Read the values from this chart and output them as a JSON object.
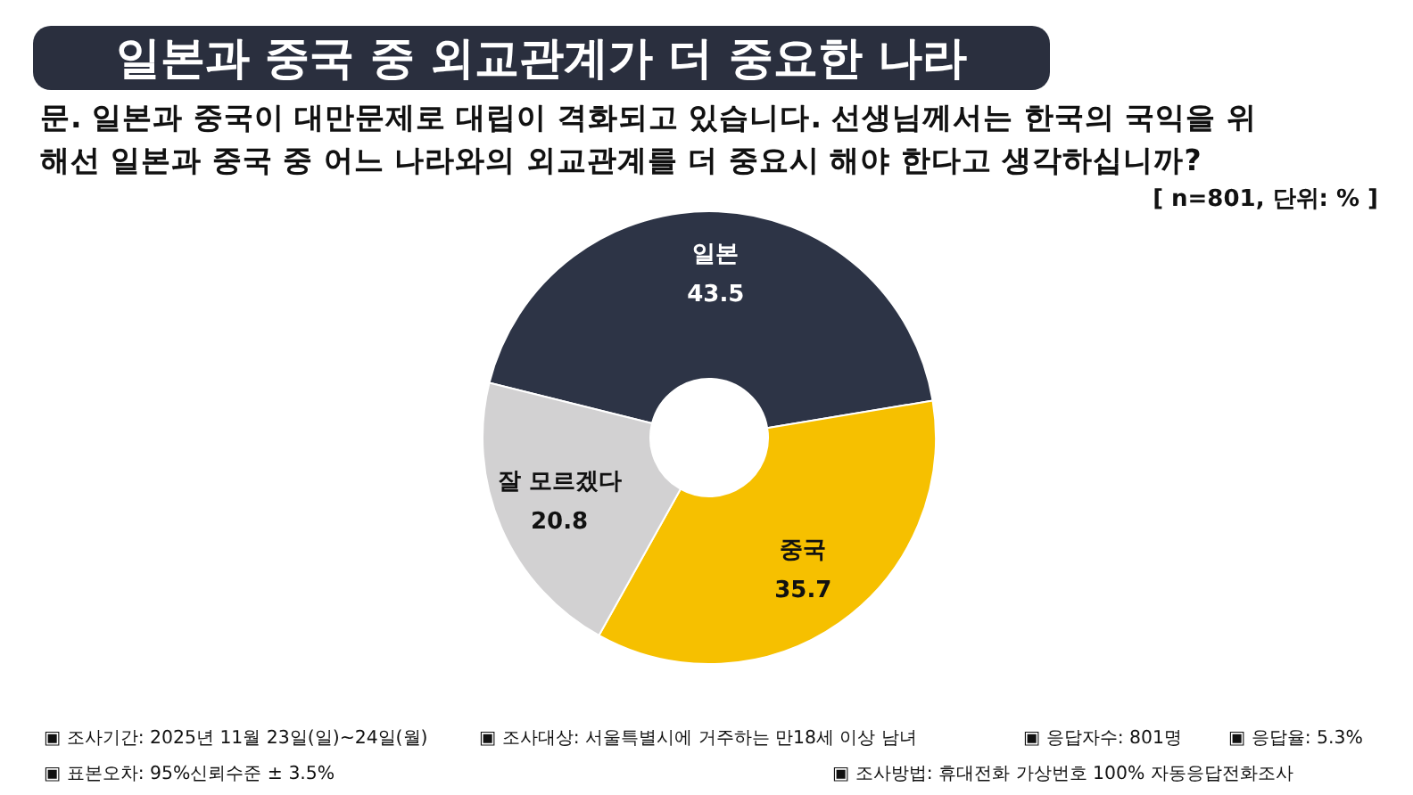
{
  "chart_data": {
    "type": "donut",
    "title": "일본과 중국 중 외교관계가 더 중요한 나라",
    "subtitle": "문. 일본과 중국이 대만문제로 대립이 격화되고 있습니다. 선생님께서는 한국의 국익을 위\n해선 일본과 중국 중 어느 나라와의 외교관계를 더 중요시 해야 한다고 생각하십니까?",
    "categories": [
      "일본",
      "중국",
      "잘 모르겠다"
    ],
    "values": [
      43.5,
      35.7,
      20.8
    ],
    "colors": [
      "#2d3446",
      "#f6c000",
      "#d2d1d2"
    ],
    "data_labels": true,
    "annotations": [
      "[ n=801, 단위: % ]",
      "▣ 조사기간: 2025년 11월 23일(일)~24일(월)",
      "▣ 조사대상: 서울특별시에 거주하는 만18세 이상 남녀",
      "▣ 응답자수: 801명",
      "▣ 응답율: 5.3%",
      "▣ 표본오차: 95%신뢰수준 ± 3.5%",
      "▣ 조사방법: 휴대전화 가상번호 100% 자동응답전화조사"
    ]
  }
}
